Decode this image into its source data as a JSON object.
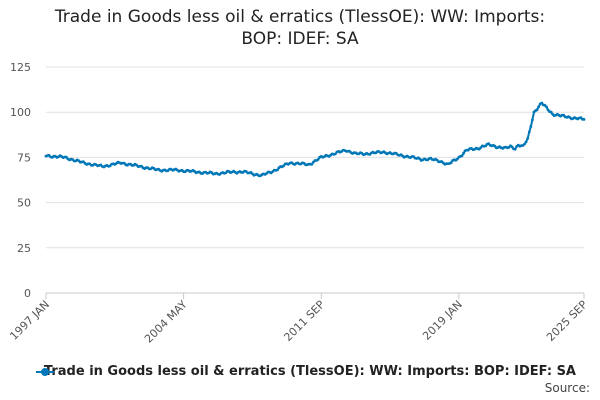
{
  "title_lines": [
    "Trade in Goods less oil & erratics (TlessOE): WW: Imports:",
    "BOP: IDEF: SA"
  ],
  "source_label": "Source:",
  "chart_data": {
    "type": "line",
    "title": "Trade in Goods less oil & erratics (TlessOE): WW: Imports: BOP: IDEF: SA",
    "xlabel": "",
    "ylabel": "",
    "ylim": [
      0,
      125
    ],
    "yticks": [
      0,
      25,
      50,
      75,
      100,
      125
    ],
    "xlim": [
      "1997 JAN",
      "2025 SEP"
    ],
    "xtick_labels": [
      "1997 JAN",
      "2004 MAY",
      "2011 SEP",
      "2019 JAN",
      "2025 SEP"
    ],
    "grid": true,
    "legend_position": "bottom",
    "series": [
      {
        "name": "Trade in Goods less oil & erratics (TlessOE): WW: Imports: BOP: IDEF: SA",
        "color": "#0077b6",
        "x": [
          "1997 JAN",
          "1998 JAN",
          "1999 JAN",
          "2000 JAN",
          "2001 JAN",
          "2002 JAN",
          "2003 JAN",
          "2004 JAN",
          "2005 JAN",
          "2006 JAN",
          "2007 JAN",
          "2007 JUL",
          "2008 JAN",
          "2008 JUL",
          "2009 JAN",
          "2010 JAN",
          "2011 JAN",
          "2011 SEP",
          "2012 JAN",
          "2013 JAN",
          "2013 JUL",
          "2014 JAN",
          "2015 JAN",
          "2016 JAN",
          "2017 JAN",
          "2017 JUL",
          "2018 JAN",
          "2018 JUN",
          "2019 JAN",
          "2019 JUN",
          "2020 JAN",
          "2020 APR",
          "2020 AUG",
          "2021 JAN",
          "2021 JUL",
          "2021 OCT",
          "2022 JAN",
          "2022 MAR",
          "2022 JUN",
          "2022 SEP",
          "2023 JAN",
          "2023 JUN",
          "2024 JAN",
          "2024 JUN",
          "2025 JAN",
          "2025 SEP"
        ],
        "values": [
          76,
          75,
          72,
          70,
          72,
          70,
          68,
          68,
          67,
          66,
          67,
          67,
          66,
          65,
          67,
          72,
          71,
          75,
          76,
          79,
          77,
          77,
          78,
          76,
          74,
          74,
          73,
          71,
          75,
          79,
          80,
          81,
          82,
          81,
          80,
          81,
          80,
          82,
          81,
          85,
          100,
          105,
          99,
          98,
          97,
          96
        ]
      }
    ]
  }
}
